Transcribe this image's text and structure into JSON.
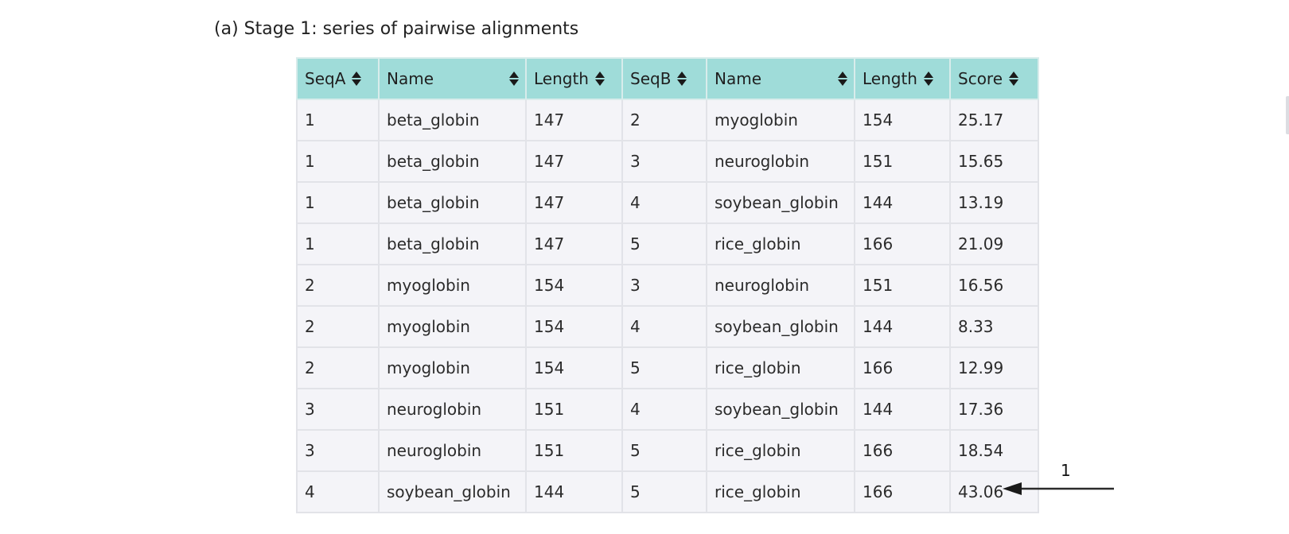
{
  "caption": "(a) Stage 1: series of pairwise alignments",
  "table": {
    "header_color": "#9fdcd9",
    "headers": [
      "SeqA",
      "Name",
      "Length",
      "SeqB",
      "Name",
      "Length",
      "Score"
    ],
    "rows": [
      [
        "1",
        "beta_globin",
        "147",
        "2",
        "myoglobin",
        "154",
        "25.17"
      ],
      [
        "1",
        "beta_globin",
        "147",
        "3",
        "neuroglobin",
        "151",
        "15.65"
      ],
      [
        "1",
        "beta_globin",
        "147",
        "4",
        "soybean_globin",
        "144",
        "13.19"
      ],
      [
        "1",
        "beta_globin",
        "147",
        "5",
        "rice_globin",
        "166",
        "21.09"
      ],
      [
        "2",
        "myoglobin",
        "154",
        "3",
        "neuroglobin",
        "151",
        "16.56"
      ],
      [
        "2",
        "myoglobin",
        "154",
        "4",
        "soybean_globin",
        "144",
        "8.33"
      ],
      [
        "2",
        "myoglobin",
        "154",
        "5",
        "rice_globin",
        "166",
        "12.99"
      ],
      [
        "3",
        "neuroglobin",
        "151",
        "4",
        "soybean_globin",
        "144",
        "17.36"
      ],
      [
        "3",
        "neuroglobin",
        "151",
        "5",
        "rice_globin",
        "166",
        "18.54"
      ],
      [
        "4",
        "soybean_globin",
        "144",
        "5",
        "rice_globin",
        "166",
        "43.06"
      ]
    ]
  },
  "callout": {
    "label": "1"
  }
}
